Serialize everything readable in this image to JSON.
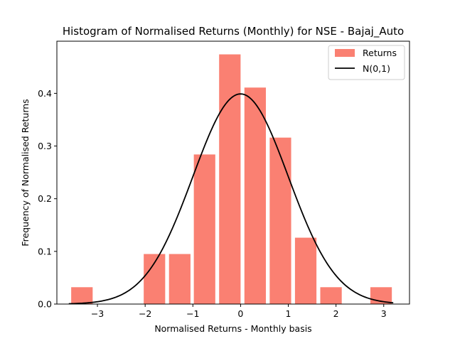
{
  "chart_data": {
    "type": "bar",
    "title": "Histogram of Normalised Returns (Monthly) for NSE - Bajaj_Auto",
    "xlabel": "Normalised Returns - Monthly basis",
    "ylabel": "Frequency of Normalised Returns",
    "xlim": [
      -3.85,
      3.54
    ],
    "ylim": [
      0,
      0.499
    ],
    "xticks": [
      -3,
      -2,
      -1,
      0,
      1,
      2,
      3
    ],
    "xtick_labels": [
      "−3",
      "−2",
      "−1",
      "0",
      "1",
      "2",
      "3"
    ],
    "yticks": [
      0.0,
      0.1,
      0.2,
      0.3,
      0.4
    ],
    "ytick_labels": [
      "0.0",
      "0.1",
      "0.2",
      "0.3",
      "0.4"
    ],
    "legend_position": "top-right",
    "grid": false,
    "series": [
      {
        "name": "Returns",
        "kind": "histogram",
        "color": "#fa8072",
        "bins": [
          {
            "x0": -3.55,
            "x1": -3.1,
            "value": 0.032
          },
          {
            "x0": -2.03,
            "x1": -1.58,
            "value": 0.095
          },
          {
            "x0": -1.5,
            "x1": -1.05,
            "value": 0.095
          },
          {
            "x0": -0.98,
            "x1": -0.53,
            "value": 0.284
          },
          {
            "x0": -0.45,
            "x1": 0.0,
            "value": 0.474
          },
          {
            "x0": 0.08,
            "x1": 0.53,
            "value": 0.411
          },
          {
            "x0": 0.61,
            "x1": 1.06,
            "value": 0.316
          },
          {
            "x0": 1.14,
            "x1": 1.59,
            "value": 0.126
          },
          {
            "x0": 1.67,
            "x1": 2.12,
            "value": 0.032
          },
          {
            "x0": 2.72,
            "x1": 3.17,
            "value": 0.032
          }
        ]
      },
      {
        "name": "N(0,1)",
        "kind": "line",
        "color": "#000000",
        "function": "standard_normal_pdf",
        "x_range": [
          -3.6,
          3.2
        ]
      }
    ]
  }
}
